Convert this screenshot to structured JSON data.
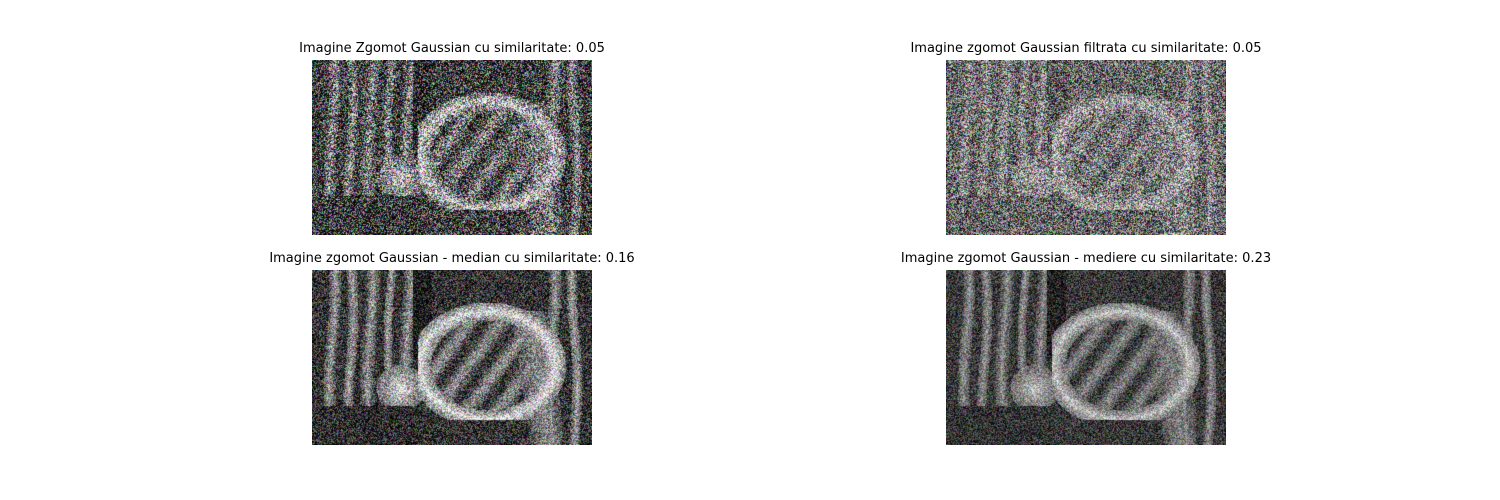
{
  "figure": {
    "panels": [
      {
        "title": "Imagine Zgomot Gaussian cu similaritate: 0.05",
        "style": "noisy-contrast",
        "noise": 0.9,
        "tone": {
          "gamma": 1.0,
          "gain": 1.0,
          "lift": 0.0
        }
      },
      {
        "title": "Imagine zgomot Gaussian filtrata cu similaritate: 0.05",
        "style": "noisy-flat",
        "noise": 0.75,
        "tone": {
          "gamma": 1.0,
          "gain": 0.45,
          "lift": 0.3
        }
      },
      {
        "title": "Imagine zgomot Gaussian - median cu similaritate: 0.16",
        "style": "median",
        "noise": 0.55,
        "tone": {
          "gamma": 1.0,
          "gain": 1.25,
          "lift": -0.08
        }
      },
      {
        "title": "Imagine zgomot Gaussian - mediere cu similaritate: 0.23",
        "style": "mean",
        "noise": 0.4,
        "tone": {
          "gamma": 1.0,
          "gain": 1.0,
          "lift": 0.0
        }
      }
    ]
  }
}
